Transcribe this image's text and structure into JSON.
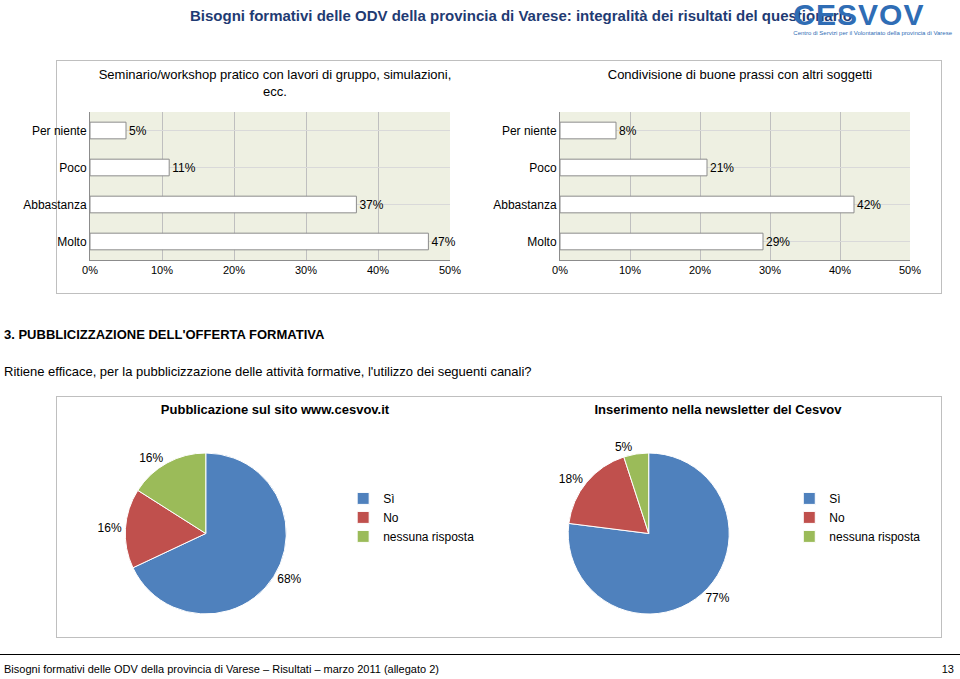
{
  "header": {
    "title": "Bisogni formativi delle ODV della provincia di Varese: integralità dei risultati del questionario",
    "logo": "CESVOV",
    "logo_subtitle": "Centro di Servizi per il Volontariato della provincia di Varese"
  },
  "chart_data": [
    {
      "type": "bar",
      "title": "Seminario/workshop pratico con lavori di gruppo, simulazioni, ecc.",
      "orientation": "horizontal",
      "categories": [
        "Per niente",
        "Poco",
        "Abbastanza",
        "Molto"
      ],
      "values": [
        5,
        11,
        37,
        47
      ],
      "value_labels": [
        "5%",
        "11%",
        "37%",
        "47%"
      ],
      "color": "#ffffff",
      "xlim": [
        0,
        50
      ],
      "xticks": [
        {
          "value": 0,
          "label": "0%"
        },
        {
          "value": 10,
          "label": "10%"
        },
        {
          "value": 20,
          "label": "20%"
        },
        {
          "value": 30,
          "label": "30%"
        },
        {
          "value": 40,
          "label": "40%"
        },
        {
          "value": 50,
          "label": "50%"
        }
      ],
      "grid": true,
      "data_labels": true
    },
    {
      "type": "bar",
      "title": "Condivisione di buone prassi con altri soggetti",
      "orientation": "horizontal",
      "categories": [
        "Per niente",
        "Poco",
        "Abbastanza",
        "Molto"
      ],
      "values": [
        8,
        21,
        42,
        29
      ],
      "value_labels": [
        "8%",
        "21%",
        "42%",
        "29%"
      ],
      "color": "#ffffff",
      "xlim": [
        0,
        50
      ],
      "xticks": [
        {
          "value": 0,
          "label": "0%"
        },
        {
          "value": 10,
          "label": "10%"
        },
        {
          "value": 20,
          "label": "20%"
        },
        {
          "value": 30,
          "label": "30%"
        },
        {
          "value": 40,
          "label": "40%"
        },
        {
          "value": 50,
          "label": "50%"
        }
      ],
      "grid": true,
      "data_labels": true
    },
    {
      "type": "pie",
      "title": "Pubblicazione sul sito www.cesvov.it",
      "categories": [
        "Sì",
        "No",
        "nessuna risposta"
      ],
      "values": [
        68,
        16,
        16
      ],
      "value_labels": [
        "68%",
        "16%",
        "16%"
      ],
      "colors": [
        "#4f81bd",
        "#c0504d",
        "#9bbb59"
      ],
      "legend": "right",
      "data_labels": true
    },
    {
      "type": "pie",
      "title": "Inserimento nella newsletter del Cesvov",
      "categories": [
        "Sì",
        "No",
        "nessuna risposta"
      ],
      "values": [
        77,
        18,
        5
      ],
      "value_labels": [
        "77%",
        "18%",
        "5%"
      ],
      "colors": [
        "#4f81bd",
        "#c0504d",
        "#9bbb59"
      ],
      "legend": "right",
      "data_labels": true
    }
  ],
  "section": {
    "heading": "3. PUBBLICIZZAZIONE DELL'OFFERTA FORMATIVA",
    "question": "Ritiene efficace, per la pubblicizzazione delle attività formative, l'utilizzo dei seguenti canali?"
  },
  "footer": {
    "text": "Bisogni formativi delle ODV della provincia di Varese – Risultati – marzo 2011 (allegato 2)",
    "page": 13
  }
}
